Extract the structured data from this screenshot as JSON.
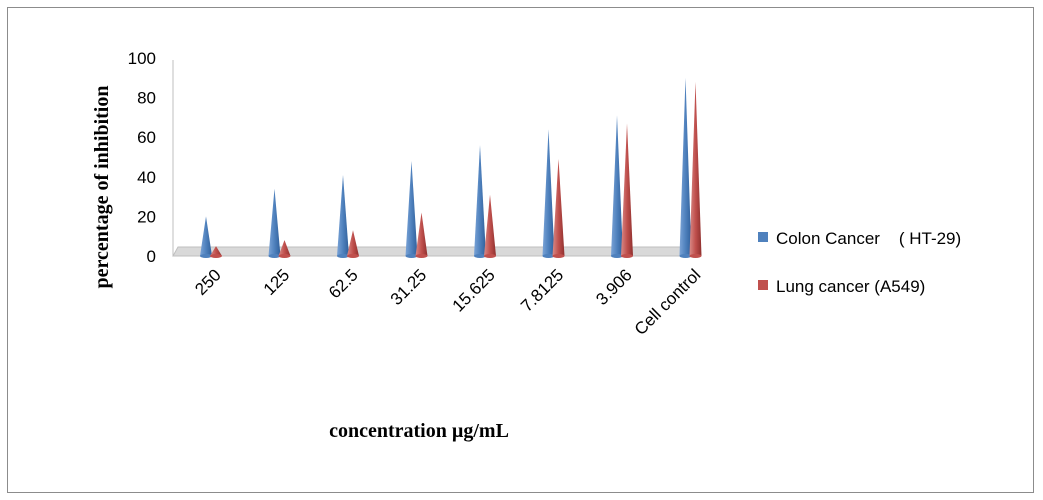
{
  "chart_data": {
    "type": "bar",
    "style": "3d-cone",
    "title": "",
    "xlabel": "concentration µg/mL",
    "ylabel": "percentage of inhibition",
    "ylim": [
      0,
      100
    ],
    "yticks": [
      0,
      20,
      40,
      60,
      80,
      100
    ],
    "categories": [
      "250",
      "125",
      "62.5",
      "31.25",
      "15.625",
      "7.8125",
      "3.906",
      "Cell control"
    ],
    "series": [
      {
        "name": "Colon Cancer    ( HT-29)",
        "color": "#4f81bd",
        "values": [
          20,
          34,
          41,
          48,
          56,
          64,
          71,
          90
        ]
      },
      {
        "name": "Lung cancer (A549)",
        "color": "#c0504d",
        "values": [
          5,
          8,
          13,
          22,
          31,
          49,
          67,
          88
        ]
      }
    ],
    "grid": false,
    "legend_position": "right"
  }
}
